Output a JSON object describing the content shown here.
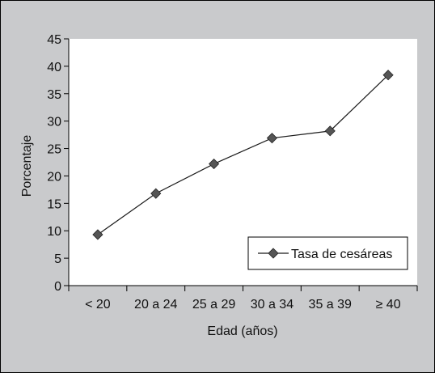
{
  "chart_data": {
    "type": "line",
    "categories": [
      "< 20",
      "20 a 24",
      "25 a 29",
      "30 a 34",
      "35 a 39",
      "≥ 40"
    ],
    "series": [
      {
        "name": "Tasa de cesáreas",
        "values": [
          9.3,
          16.8,
          22.2,
          26.9,
          28.2,
          38.4
        ]
      }
    ],
    "xlabel": "Edad (años)",
    "ylabel": "Porcentaje",
    "ylim": [
      0,
      45
    ],
    "yticks": [
      0,
      5,
      10,
      15,
      20,
      25,
      30,
      35,
      40,
      45
    ],
    "grid": false,
    "legend_position": "bottom-right",
    "colors": {
      "line": "#1a1a1a",
      "marker": "#555555",
      "frame_bg": "#c9cacc",
      "plot_bg": "#ffffff"
    }
  }
}
